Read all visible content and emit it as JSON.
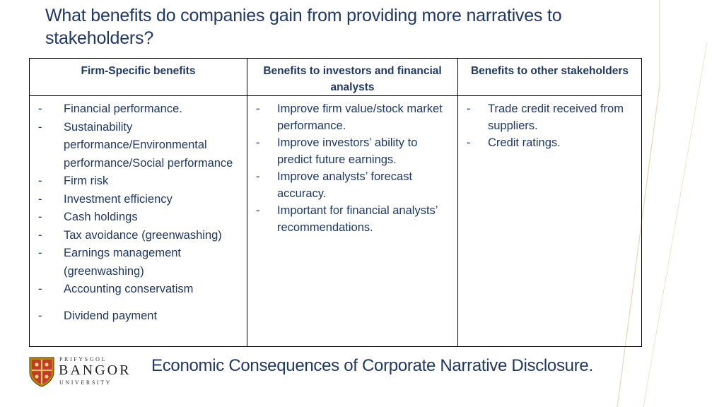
{
  "slide": {
    "title": "What benefits do companies gain from providing more narratives to stakeholders?",
    "footer_text": "Economic Consequences of Corporate Narrative Disclosure."
  },
  "table": {
    "headers": [
      "Firm-Specific benefits",
      "Benefits to investors and financial analysts",
      "Benefits to other stakeholders"
    ],
    "columns": [
      [
        "Financial performance.",
        "Sustainability performance/Environmental performance/Social performance",
        "Firm risk",
        "Investment efficiency",
        "Cash holdings",
        "Tax avoidance (greenwashing)",
        "Earnings management (greenwashing)",
        "Accounting conservatism",
        "Dividend payment"
      ],
      [
        "Improve firm value/stock market performance.",
        "Improve investors’ ability to predict future earnings.",
        "Improve analysts’ forecast accuracy.",
        "Important for financial analysts’ recommendations."
      ],
      [
        "Trade credit received from suppliers.",
        "Credit ratings."
      ]
    ]
  },
  "logo": {
    "top_text": "PRIFYSGOL",
    "main_text": "BANGOR",
    "bottom_text": "UNIVERSITY"
  },
  "colors": {
    "title": "#1f3864",
    "border": "#000000",
    "accent_line": "#d9c9a0"
  }
}
